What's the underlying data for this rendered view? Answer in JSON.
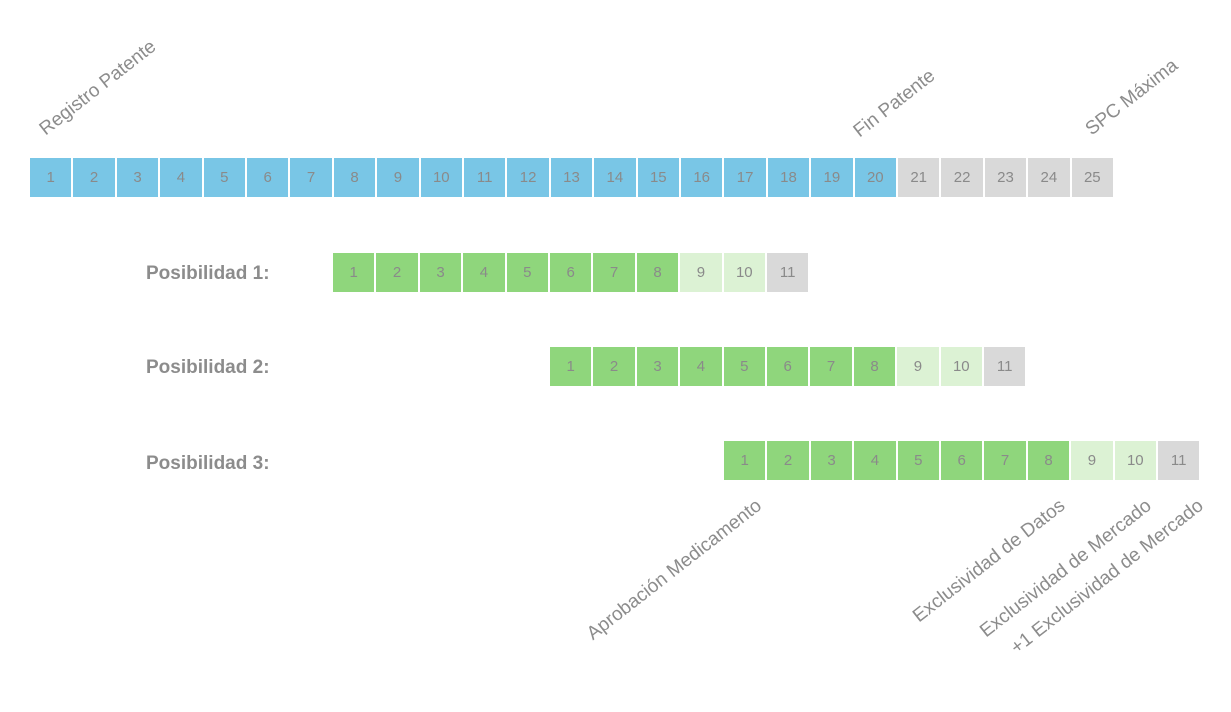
{
  "colors": {
    "patent_blue": "#79c6e6",
    "approval_green": "#8fd67c",
    "light_green": "#dcf2d4",
    "grey": "#d9d9d9",
    "text_grey": "#8c8c8c"
  },
  "top_labels": {
    "registro": "Registro Patente",
    "fin": "Fin Patente",
    "spc": "SPC Máxima"
  },
  "timeline": {
    "patent_years": [
      "1",
      "2",
      "3",
      "4",
      "5",
      "6",
      "7",
      "8",
      "9",
      "10",
      "11",
      "12",
      "13",
      "14",
      "15",
      "16",
      "17",
      "18",
      "19",
      "20"
    ],
    "spc_years": [
      "21",
      "22",
      "23",
      "24",
      "25"
    ]
  },
  "possibilities": [
    {
      "label": "Posibilidad 1:",
      "green": [
        "1",
        "2",
        "3",
        "4",
        "5",
        "6",
        "7",
        "8"
      ],
      "light": [
        "9",
        "10"
      ],
      "grey": [
        "11"
      ]
    },
    {
      "label": "Posibilidad 2:",
      "green": [
        "1",
        "2",
        "3",
        "4",
        "5",
        "6",
        "7",
        "8"
      ],
      "light": [
        "9",
        "10"
      ],
      "grey": [
        "11"
      ]
    },
    {
      "label": "Posibilidad 3:",
      "green": [
        "1",
        "2",
        "3",
        "4",
        "5",
        "6",
        "7",
        "8"
      ],
      "light": [
        "9",
        "10"
      ],
      "grey": [
        "11"
      ]
    }
  ],
  "bottom_labels": {
    "aprobacion": "Aprobación Medicamento",
    "datos": "Exclusividad de Datos",
    "mercado": "Exclusividad de Mercado",
    "mas_mercado": "+1 Exclusividad de Mercado"
  }
}
